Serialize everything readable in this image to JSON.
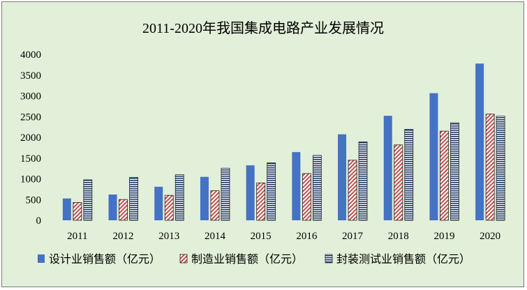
{
  "chart_data": {
    "type": "bar",
    "title": "2011-2020年我国集成电路产业发展情况",
    "categories": [
      "2011",
      "2012",
      "2013",
      "2014",
      "2015",
      "2016",
      "2017",
      "2018",
      "2019",
      "2020"
    ],
    "series": [
      {
        "name": "设计业销售额（亿元）",
        "values": [
          526,
          621,
          809,
          1047,
          1325,
          1644,
          2073,
          2519,
          3064,
          3778
        ],
        "color": "#4472c4",
        "pattern": "solid"
      },
      {
        "name": "制造业销售额（亿元）",
        "values": [
          431,
          501,
          601,
          712,
          901,
          1127,
          1448,
          1818,
          2149,
          2560
        ],
        "color": "#c0504d",
        "pattern": "diagonal-hatch"
      },
      {
        "name": "封装测试业销售额（亿元）",
        "values": [
          975,
          1036,
          1099,
          1256,
          1384,
          1564,
          1889,
          2194,
          2350,
          2510
        ],
        "color": "#1f3864",
        "pattern": "horizontal-stripes"
      }
    ],
    "yticks": [
      0,
      500,
      1000,
      1500,
      2000,
      2500,
      3000,
      3500,
      4000
    ],
    "ylim": [
      0,
      4000
    ],
    "grid": false,
    "legend": "bottom"
  }
}
